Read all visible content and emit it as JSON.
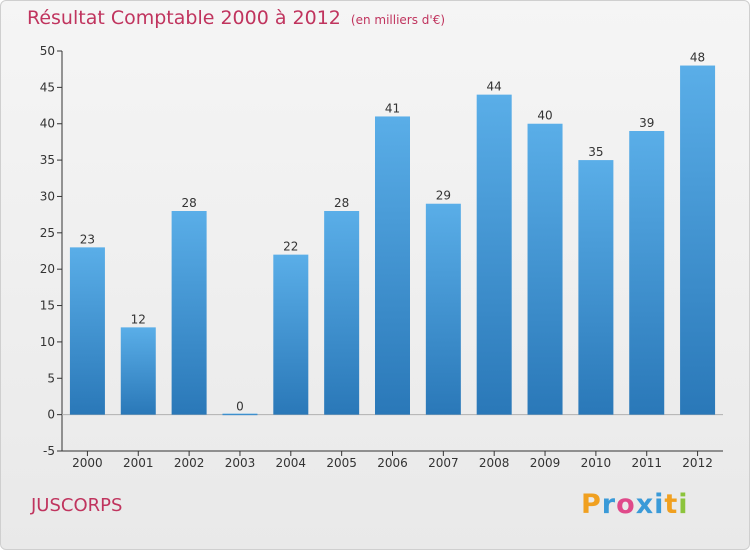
{
  "chart_data": {
    "type": "bar",
    "title": "Résultat Comptable 2000 à 2012",
    "subtitle": "(en milliers d'€)",
    "categories": [
      "2000",
      "2001",
      "2002",
      "2003",
      "2004",
      "2005",
      "2006",
      "2007",
      "2008",
      "2009",
      "2010",
      "2011",
      "2012"
    ],
    "values": [
      23,
      12,
      28,
      0,
      22,
      28,
      41,
      29,
      44,
      40,
      35,
      39,
      48
    ],
    "xlabel": "",
    "ylabel": "",
    "ylim": [
      -5,
      50
    ],
    "yticks": [
      -5,
      0,
      5,
      10,
      15,
      20,
      25,
      30,
      35,
      40,
      45,
      50
    ],
    "grid": false,
    "legend": "none",
    "bar_color_top": "#5aaee8",
    "bar_color_bottom": "#2a78b8"
  },
  "footer": {
    "commune": "JUSCORPS",
    "brand_letters": [
      "P",
      "r",
      "o",
      "x",
      "i",
      "t",
      "i"
    ],
    "brand_colors": [
      "#f0a020",
      "#3a9ad8",
      "#e04a8a",
      "#3a9ad8",
      "#3a9ad8",
      "#f0a020",
      "#8cc43c"
    ]
  },
  "colors": {
    "title": "#c0345e",
    "axis": "#333333"
  }
}
